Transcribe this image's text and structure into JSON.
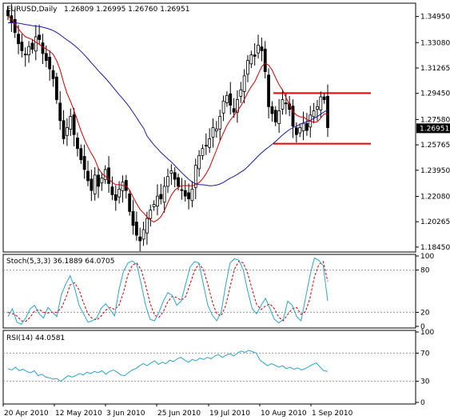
{
  "header": {
    "symbol": "EURUSD,Daily",
    "ohlc": "1.26809 1.26995 1.26760 1.26951"
  },
  "stoch_header": "Stoch(5,3,3) 36.1889 64.0705",
  "rsi_header": "RSI(14) 44.0581",
  "colors": {
    "candle": "#000000",
    "ma_fast": "#cc0000",
    "ma_slow": "#1a1aa0",
    "levels": "#ee0000",
    "stoch_main": "#2aa5c8",
    "stoch_signal": "#cc0000",
    "rsi": "#2aa5c8",
    "grid_dash": "#999999"
  },
  "chart_data": [
    {
      "type": "candlestick",
      "title": "EURUSD,Daily",
      "ylim": [
        1.181,
        1.359
      ],
      "y_ticks": [
        "1.34950",
        "1.33080",
        "1.31265",
        "1.29450",
        "1.27580",
        "1.25765",
        "1.23950",
        "1.22080",
        "1.20265",
        "1.18450"
      ],
      "x_ticks": [
        "20 Apr 2010",
        "12 May 2010",
        "3 Jun 2010",
        "25 Jun 2010",
        "19 Jul 2010",
        "10 Aug 2010",
        "1 Sep 2010"
      ],
      "current_price_label": "1.26951",
      "horizontal_levels": [
        1.2947,
        1.2585
      ],
      "candles_close": [
        1.35,
        1.345,
        1.338,
        1.33,
        1.325,
        1.322,
        1.328,
        1.326,
        1.335,
        1.333,
        1.323,
        1.318,
        1.312,
        1.305,
        1.29,
        1.275,
        1.262,
        1.27,
        1.278,
        1.265,
        1.255,
        1.247,
        1.24,
        1.232,
        1.225,
        1.236,
        1.228,
        1.234,
        1.24,
        1.23,
        1.222,
        1.218,
        1.226,
        1.231,
        1.225,
        1.21,
        1.2,
        1.193,
        1.189,
        1.197,
        1.205,
        1.211,
        1.215,
        1.221,
        1.219,
        1.228,
        1.235,
        1.239,
        1.233,
        1.228,
        1.225,
        1.221,
        1.219,
        1.226,
        1.243,
        1.25,
        1.255,
        1.257,
        1.262,
        1.27,
        1.269,
        1.278,
        1.289,
        1.293,
        1.286,
        1.281,
        1.29,
        1.297,
        1.307,
        1.318,
        1.322,
        1.321,
        1.329,
        1.325,
        1.31,
        1.285,
        1.28,
        1.274,
        1.282,
        1.29,
        1.287,
        1.283,
        1.271,
        1.265,
        1.27,
        1.273,
        1.268,
        1.279,
        1.282,
        1.285,
        1.292,
        1.29,
        1.27
      ],
      "series": [
        {
          "name": "Moving Average (fast)",
          "color": "#cc0000"
        },
        {
          "name": "Moving Average (slow)",
          "color": "#1a1aa0"
        }
      ]
    },
    {
      "type": "line",
      "title": "Stoch(5,3,3) 36.1889 64.0705",
      "ylim": [
        0,
        100
      ],
      "y_ticks": [
        "100",
        "80",
        "20",
        "0"
      ],
      "levels": [
        80,
        20
      ],
      "series": [
        {
          "name": "Stoch main",
          "values": [
            14,
            25,
            6,
            3,
            12,
            25,
            30,
            18,
            12,
            27,
            20,
            14,
            45,
            60,
            72,
            55,
            30,
            18,
            6,
            8,
            12,
            26,
            32,
            24,
            15,
            52,
            78,
            90,
            93,
            88,
            60,
            30,
            10,
            8,
            20,
            36,
            48,
            44,
            30,
            36,
            60,
            84,
            92,
            90,
            60,
            30,
            16,
            8,
            20,
            58,
            90,
            96,
            94,
            80,
            50,
            25,
            18,
            30,
            40,
            25,
            10,
            5,
            10,
            36,
            30,
            14,
            8,
            40,
            72,
            97,
            94,
            86,
            36
          ]
        },
        {
          "name": "Stoch signal",
          "values": [
            20,
            18,
            15,
            8,
            7,
            13,
            22,
            24,
            20,
            19,
            20,
            20,
            26,
            40,
            59,
            62,
            52,
            34,
            18,
            11,
            9,
            15,
            23,
            27,
            24,
            30,
            48,
            73,
            87,
            90,
            80,
            59,
            33,
            16,
            13,
            21,
            35,
            43,
            41,
            37,
            42,
            60,
            79,
            89,
            81,
            60,
            35,
            18,
            15,
            29,
            56,
            81,
            93,
            90,
            75,
            52,
            31,
            24,
            29,
            32,
            25,
            13,
            8,
            17,
            25,
            27,
            17,
            21,
            40,
            70,
            88,
            92,
            64
          ]
        }
      ]
    },
    {
      "type": "line",
      "title": "RSI(14) 44.0581",
      "ylim": [
        0,
        100
      ],
      "y_ticks": [
        "100",
        "70",
        "30",
        "0"
      ],
      "levels": [
        70,
        30
      ],
      "series": [
        {
          "name": "RSI(14)",
          "values": [
            48,
            46,
            50,
            45,
            47,
            44,
            42,
            45,
            38,
            40,
            36,
            35,
            33,
            34,
            30,
            34,
            38,
            36,
            38,
            41,
            39,
            43,
            41,
            44,
            42,
            45,
            40,
            44,
            46,
            43,
            39,
            38,
            42,
            46,
            48,
            52,
            55,
            52,
            56,
            59,
            54,
            57,
            55,
            60,
            58,
            62,
            64,
            60,
            57,
            61,
            59,
            63,
            61,
            64,
            62,
            66,
            68,
            64,
            67,
            69,
            66,
            70,
            73,
            71,
            74,
            72,
            70,
            60,
            56,
            52,
            55,
            53,
            50,
            52,
            48,
            50,
            47,
            49,
            46,
            48,
            51,
            54,
            56,
            50,
            45,
            44
          ]
        }
      ]
    }
  ]
}
